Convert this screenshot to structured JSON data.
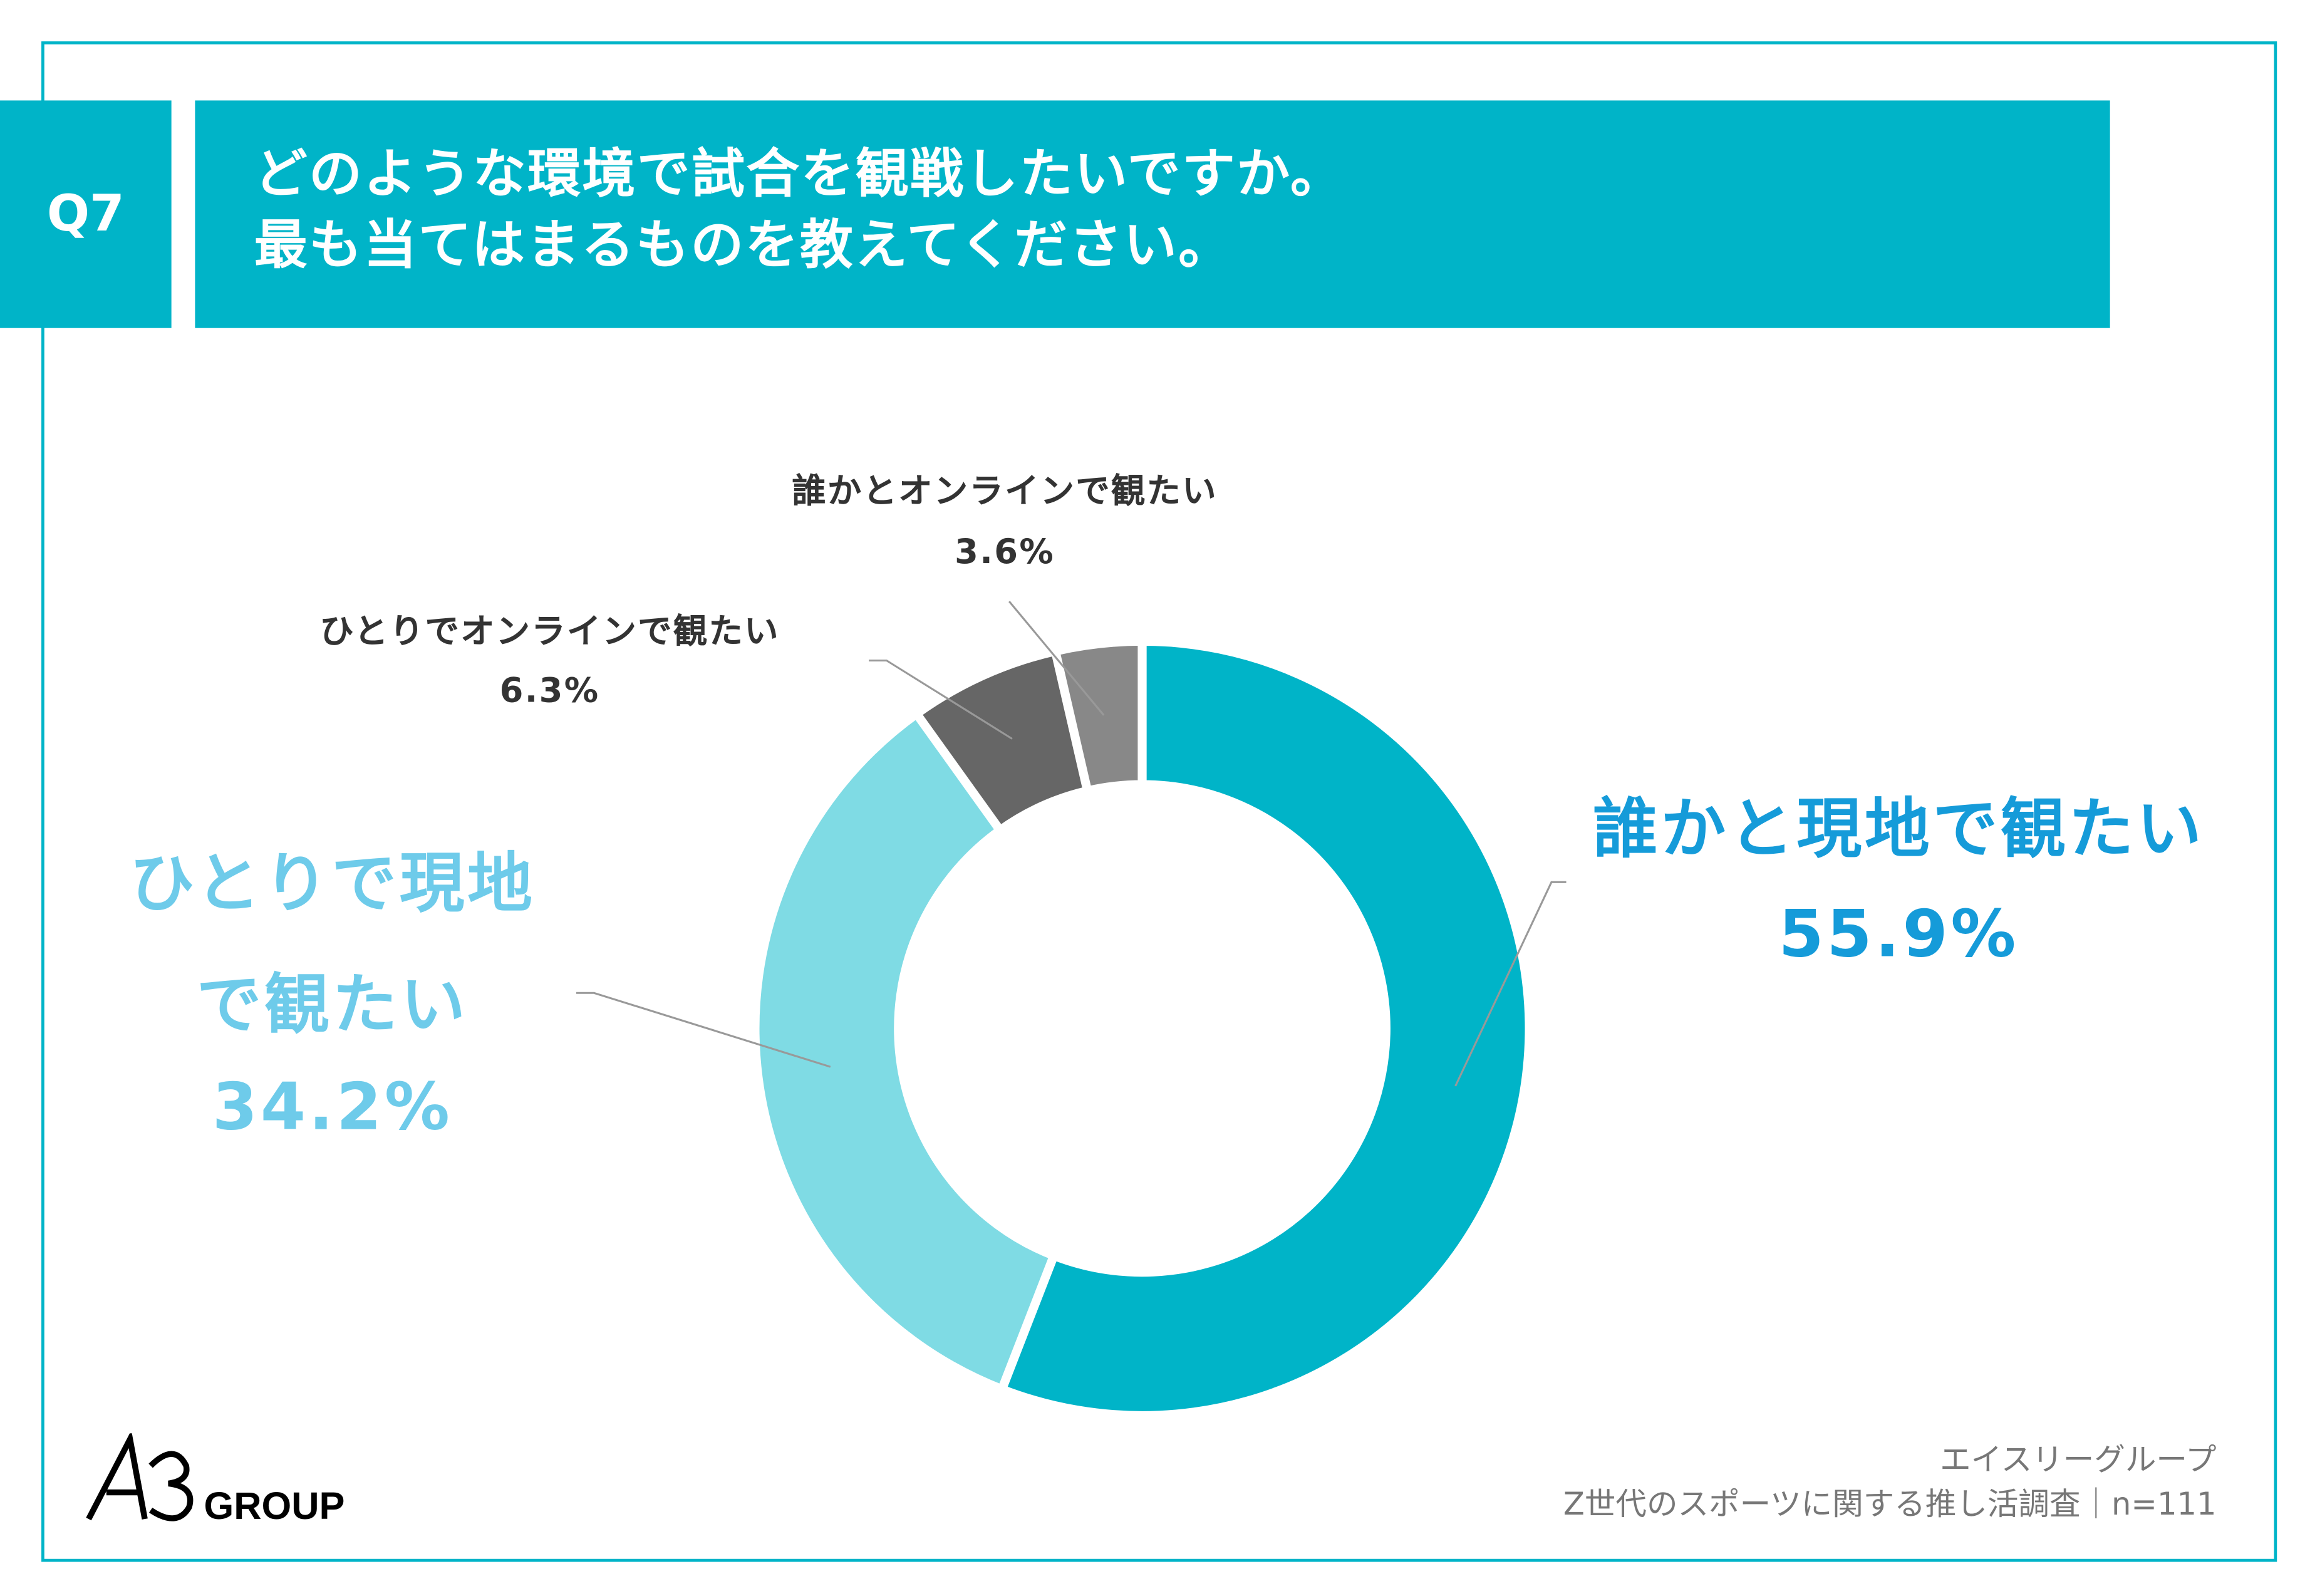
{
  "header": {
    "question_no": "Q7",
    "title_line1": "どのような環境で試合を観戦したいですか。",
    "title_line2": "最も当てはまるものを教えてください。"
  },
  "chart_data": {
    "type": "pie",
    "donut": true,
    "start": "top",
    "direction": "clockwise",
    "categories": [
      "誰かと現地で観たい",
      "ひとりで現地で観たい",
      "ひとりでオンラインで観たい",
      "誰かとオンラインで観たい"
    ],
    "values": [
      55.9,
      34.2,
      6.3,
      3.6
    ],
    "value_labels": [
      "55.9%",
      "34.2%",
      "6.3%",
      "3.6%"
    ],
    "label_lines": {
      "l1_a": "ひとりで現地",
      "l1_b": "で観たい"
    },
    "colors": [
      "#00b4c8",
      "#7fdbe4",
      "#666666",
      "#888888"
    ],
    "label_colors": [
      "#159bd9",
      "#6ecbea",
      "#333333",
      "#333333"
    ]
  },
  "footer": {
    "company": "エイスリーグループ",
    "survey": "Z世代のスポーツに関する推し活調査｜n=111",
    "logo_text": "A3GROUP"
  }
}
